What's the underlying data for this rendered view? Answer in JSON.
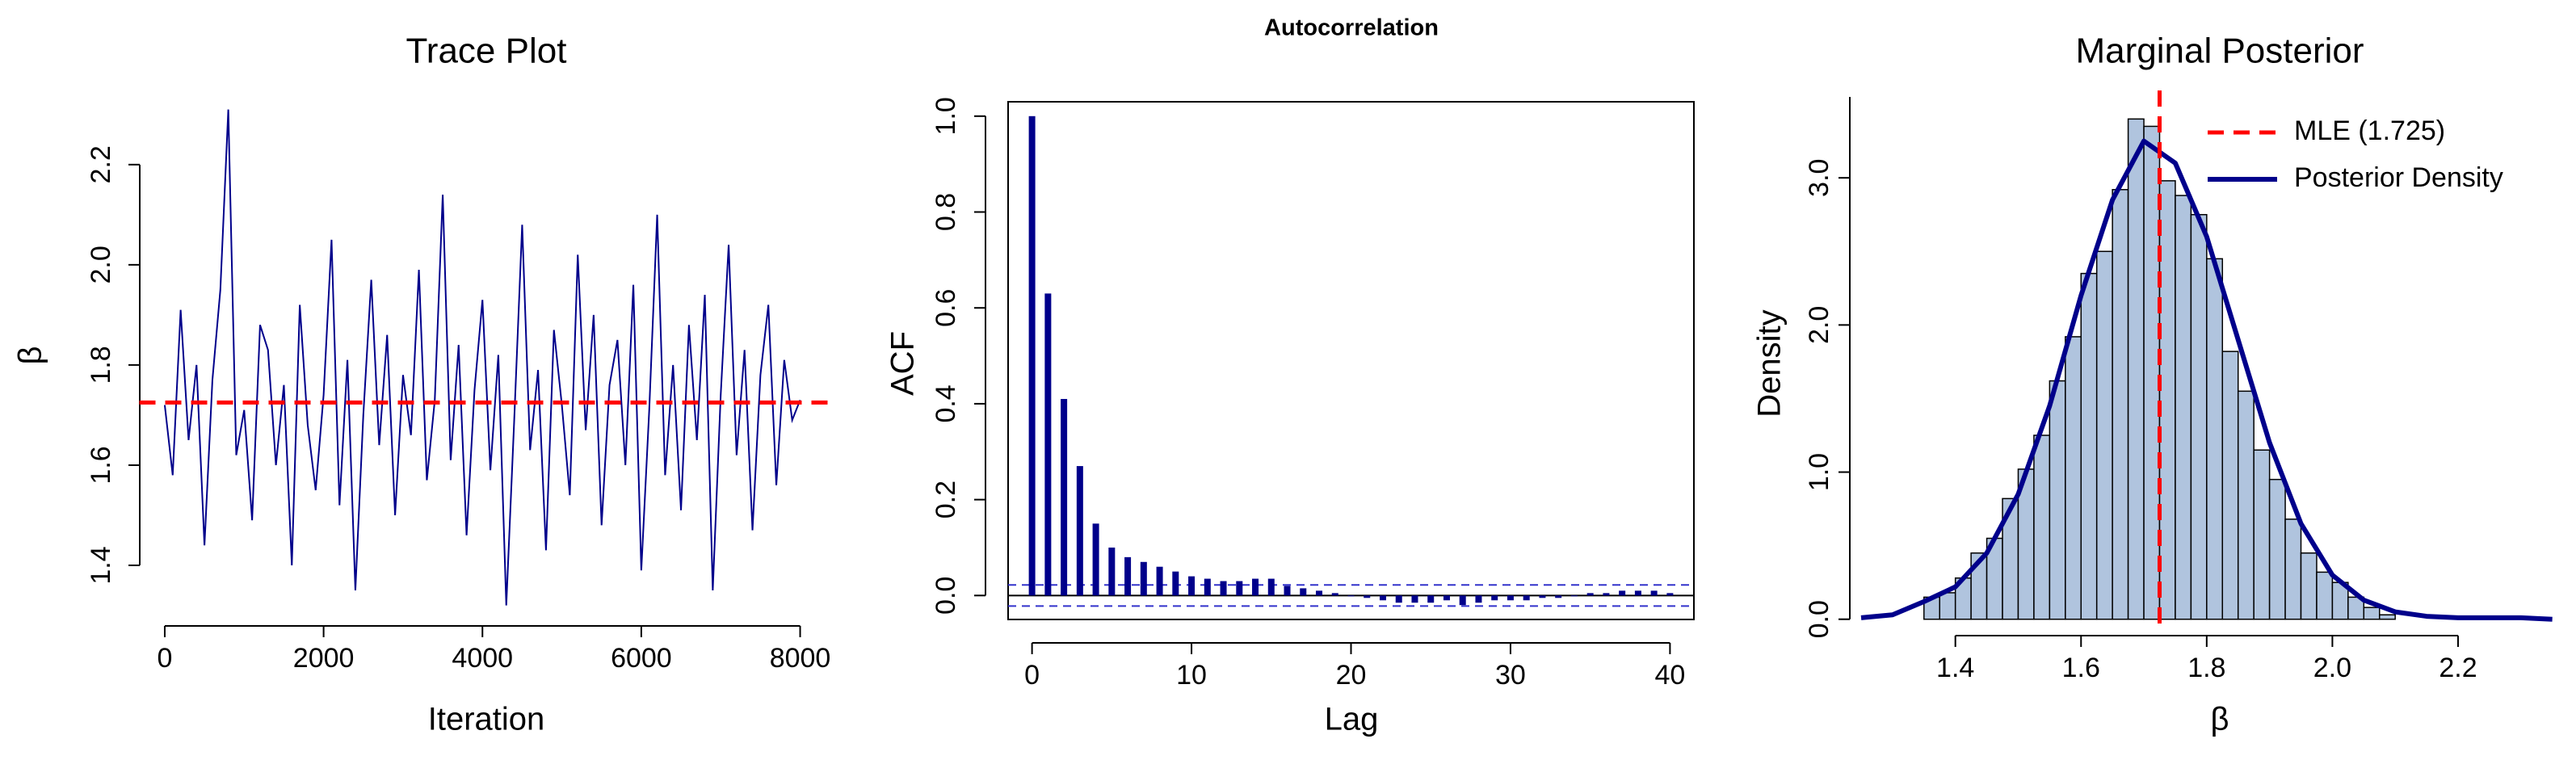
{
  "chart_data": [
    {
      "type": "line",
      "title": "Trace Plot",
      "xlabel": "Iteration",
      "ylabel": "β",
      "x": [
        0,
        100,
        200,
        300,
        400,
        500,
        600,
        700,
        800,
        900,
        1000,
        1100,
        1200,
        1300,
        1400,
        1500,
        1600,
        1700,
        1800,
        1900,
        2000,
        2100,
        2200,
        2300,
        2400,
        2500,
        2600,
        2700,
        2800,
        2900,
        3000,
        3100,
        3200,
        3300,
        3400,
        3500,
        3600,
        3700,
        3800,
        3900,
        4000,
        4100,
        4200,
        4300,
        4400,
        4500,
        4600,
        4700,
        4800,
        4900,
        5000,
        5100,
        5200,
        5300,
        5400,
        5500,
        5600,
        5700,
        5800,
        5900,
        6000,
        6100,
        6200,
        6300,
        6400,
        6500,
        6600,
        6700,
        6800,
        6900,
        7000,
        7100,
        7200,
        7300,
        7400,
        7500,
        7600,
        7700,
        7800,
        7900,
        8000
      ],
      "values": [
        1.72,
        1.58,
        1.91,
        1.65,
        1.8,
        1.44,
        1.77,
        1.95,
        2.31,
        1.62,
        1.71,
        1.49,
        1.88,
        1.83,
        1.6,
        1.76,
        1.4,
        1.92,
        1.68,
        1.55,
        1.74,
        2.05,
        1.52,
        1.81,
        1.35,
        1.7,
        1.97,
        1.64,
        1.86,
        1.5,
        1.78,
        1.66,
        1.99,
        1.57,
        1.73,
        2.14,
        1.61,
        1.84,
        1.46,
        1.75,
        1.93,
        1.59,
        1.82,
        1.32,
        1.69,
        2.08,
        1.63,
        1.79,
        1.43,
        1.87,
        1.72,
        1.54,
        2.02,
        1.67,
        1.9,
        1.48,
        1.76,
        1.85,
        1.6,
        1.96,
        1.39,
        1.71,
        2.1,
        1.58,
        1.8,
        1.51,
        1.88,
        1.65,
        1.94,
        1.35,
        1.74,
        2.04,
        1.62,
        1.83,
        1.47,
        1.78,
        1.92,
        1.56,
        1.81,
        1.69,
        1.73
      ],
      "color": "#00008b",
      "hline": {
        "value": 1.725,
        "color": "#ff0000"
      },
      "xlim": [
        -320,
        8320
      ],
      "xticks": [
        0,
        2000,
        4000,
        6000,
        8000
      ],
      "ylim": [
        1.3,
        2.34
      ],
      "yticks": [
        1.4,
        1.6,
        1.8,
        {
          "value": 2.0,
          "label": "2.0"
        },
        2.2
      ]
    },
    {
      "type": "bar",
      "title": "Autocorrelation",
      "xlabel": "Lag",
      "ylabel": "ACF",
      "x": [
        0,
        1,
        2,
        3,
        4,
        5,
        6,
        7,
        8,
        9,
        10,
        11,
        12,
        13,
        14,
        15,
        16,
        17,
        18,
        19,
        20,
        21,
        22,
        23,
        24,
        25,
        26,
        27,
        28,
        29,
        30,
        31,
        32,
        33,
        34,
        35,
        36,
        37,
        38,
        39,
        40
      ],
      "values": [
        1.0,
        0.63,
        0.41,
        0.27,
        0.15,
        0.1,
        0.08,
        0.07,
        0.06,
        0.05,
        0.04,
        0.035,
        0.03,
        0.03,
        0.035,
        0.035,
        0.02,
        0.015,
        0.01,
        0.005,
        0.0,
        -0.005,
        -0.01,
        -0.015,
        -0.015,
        -0.015,
        -0.01,
        -0.02,
        -0.015,
        -0.01,
        -0.01,
        -0.01,
        -0.005,
        -0.005,
        0.0,
        0.005,
        0.005,
        0.01,
        0.01,
        0.01,
        0.005
      ],
      "color": "#00008b",
      "ci_lines": [
        0.022,
        -0.022
      ],
      "ci_color": "#3333cc",
      "xlim": [
        -1.5,
        41.5
      ],
      "xticks": [
        0,
        10,
        20,
        30,
        40
      ],
      "ylim": [
        -0.05,
        1.03
      ],
      "yticks": [
        {
          "value": 0,
          "label": "0.0"
        },
        0.2,
        0.4,
        0.6,
        0.8,
        {
          "value": 1,
          "label": "1.0"
        }
      ]
    },
    {
      "type": "histogram",
      "title": "Marginal Posterior",
      "xlabel": "β",
      "ylabel": "Density",
      "bins": [
        1.35,
        1.375,
        1.4,
        1.425,
        1.45,
        1.475,
        1.5,
        1.525,
        1.55,
        1.575,
        1.6,
        1.625,
        1.65,
        1.675,
        1.7,
        1.725,
        1.75,
        1.775,
        1.8,
        1.825,
        1.85,
        1.875,
        1.9,
        1.925,
        1.95,
        1.975,
        2.0,
        2.025,
        2.05,
        2.075,
        2.1
      ],
      "counts": [
        0.15,
        0.18,
        0.28,
        0.45,
        0.55,
        0.82,
        1.02,
        1.25,
        1.62,
        1.92,
        2.35,
        2.5,
        2.92,
        3.4,
        3.35,
        2.98,
        2.88,
        2.75,
        2.45,
        1.82,
        1.55,
        1.15,
        0.95,
        0.68,
        0.45,
        0.32,
        0.25,
        0.15,
        0.08,
        0.03
      ],
      "bar_color": "#b0c4de",
      "curve": {
        "name": "Posterior Density",
        "color": "#00008b",
        "x": [
          1.25,
          1.3,
          1.35,
          1.4,
          1.45,
          1.5,
          1.55,
          1.6,
          1.65,
          1.7,
          1.75,
          1.8,
          1.85,
          1.9,
          1.95,
          2.0,
          2.05,
          2.1,
          2.15,
          2.2,
          2.25,
          2.3,
          2.35
        ],
        "values": [
          0.01,
          0.03,
          0.12,
          0.22,
          0.45,
          0.85,
          1.45,
          2.2,
          2.85,
          3.25,
          3.1,
          2.6,
          1.9,
          1.2,
          0.65,
          0.3,
          0.13,
          0.05,
          0.02,
          0.01,
          0.01,
          0.01,
          0.0
        ]
      },
      "vline": {
        "name": "MLE (1.725)",
        "value": 1.725,
        "color": "#ff0000"
      },
      "legend": "top-right",
      "xlim": [
        1.25,
        2.38
      ],
      "xticks": [
        1.4,
        1.6,
        1.8,
        {
          "value": 2.0,
          "label": "2.0"
        },
        2.2
      ],
      "ylim": [
        -0.04,
        3.55
      ],
      "yticks": [
        {
          "value": 0,
          "label": "0.0"
        },
        {
          "value": 1,
          "label": "1.0"
        },
        {
          "value": 2,
          "label": "2.0"
        },
        {
          "value": 3,
          "label": "3.0"
        }
      ]
    }
  ]
}
